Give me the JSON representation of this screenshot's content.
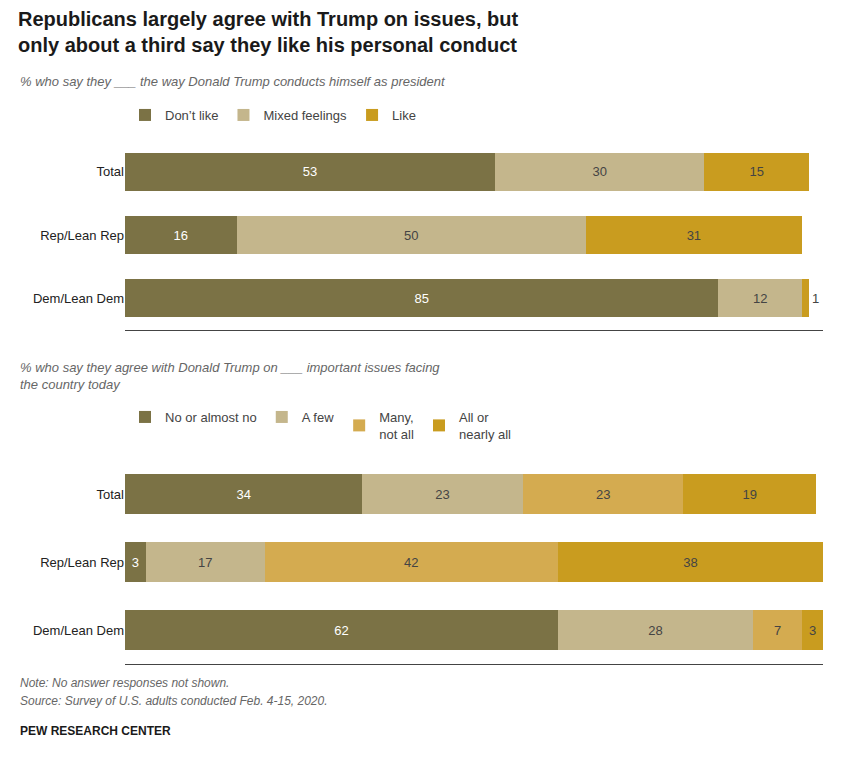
{
  "chart_data": [
    {
      "type": "bar",
      "title": "Republicans largely agree with Trump on issues, but\nonly about a third say they like his personal conduct",
      "subtitle": "% who say they ___ the way Donald Trump conducts himself as president",
      "categories": [
        "Total",
        "Rep/Lean Rep",
        "Dem/Lean Dem"
      ],
      "series": [
        {
          "name": "Don’t like",
          "color": "#7b7245",
          "values": [
            53,
            16,
            85
          ]
        },
        {
          "name": "Mixed feelings",
          "color": "#c4b68c",
          "values": [
            30,
            50,
            12
          ]
        },
        {
          "name": "Like",
          "color": "#c99c1f",
          "values": [
            15,
            31,
            1
          ]
        }
      ],
      "orientation": "horizontal",
      "stacked": true,
      "data_labels": true,
      "tick_labels": "y",
      "grid": false,
      "legend": "top",
      "xlim": [
        0,
        100
      ]
    },
    {
      "type": "bar",
      "subtitle": "% who say they agree with Donald Trump on ___ important issues facing\nthe country today",
      "categories": [
        "Total",
        "Rep/Lean Rep",
        "Dem/Lean Dem"
      ],
      "series": [
        {
          "name": "No or almost no",
          "color": "#7b7245",
          "values": [
            34,
            3,
            62
          ]
        },
        {
          "name": "A few",
          "color": "#c4b68c",
          "values": [
            23,
            17,
            28
          ]
        },
        {
          "name": "Many,\nnot all",
          "color": "#d4ab50",
          "values": [
            23,
            42,
            7
          ]
        },
        {
          "name": "All or\nnearly all",
          "color": "#c99c1f",
          "values": [
            19,
            38,
            3
          ]
        }
      ],
      "orientation": "horizontal",
      "stacked": true,
      "data_labels": true,
      "tick_labels": "y",
      "grid": false,
      "legend": "top",
      "xlim": [
        0,
        100
      ],
      "annotations": [
        "Note: No answer responses not shown.",
        "Source: Survey of U.S. adults conducted Feb. 4-15, 2020.",
        "PEW RESEARCH CENTER"
      ]
    }
  ]
}
